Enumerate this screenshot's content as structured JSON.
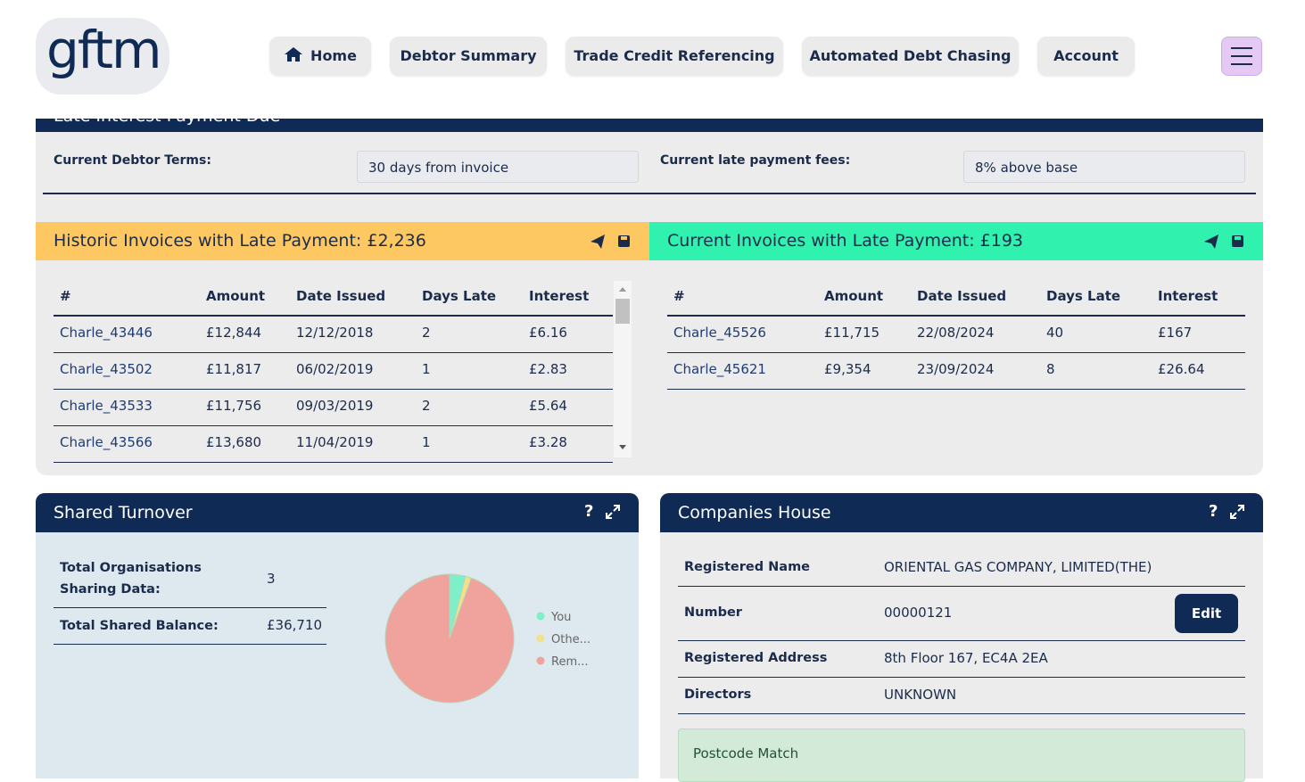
{
  "nav": {
    "logo": "gftm",
    "items": [
      "Home",
      "Debtor Summary",
      "Trade Credit Referencing",
      "Automated Debt Chasing",
      "Account"
    ]
  },
  "late_interest": {
    "title": "Late Interest Payment Due",
    "terms_label": "Current Debtor Terms:",
    "terms_value": "30 days from invoice",
    "fees_label": "Current late payment fees:",
    "fees_value": "8% above base"
  },
  "historic": {
    "title": "Historic Invoices with Late Payment: £2,236",
    "columns": [
      "#",
      "Amount",
      "Date Issued",
      "Days Late",
      "Interest"
    ],
    "rows": [
      [
        "Charle_43446",
        "£12,844",
        "12/12/2018",
        "2",
        "£6.16"
      ],
      [
        "Charle_43502",
        "£11,817",
        "06/02/2019",
        "1",
        "£2.83"
      ],
      [
        "Charle_43533",
        "£11,756",
        "09/03/2019",
        "2",
        "£5.64"
      ],
      [
        "Charle_43566",
        "£13,680",
        "11/04/2019",
        "1",
        "£3.28"
      ]
    ]
  },
  "current": {
    "title": "Current Invoices with Late Payment: £193",
    "columns": [
      "#",
      "Amount",
      "Date Issued",
      "Days Late",
      "Interest"
    ],
    "rows": [
      [
        "Charle_45526",
        "£11,715",
        "22/08/2024",
        "40",
        "£167"
      ],
      [
        "Charle_45621",
        "£9,354",
        "23/09/2024",
        "8",
        "£26.64"
      ]
    ]
  },
  "shared_turnover": {
    "title": "Shared Turnover",
    "help": "?",
    "rows": [
      {
        "label": "Total Organisations Sharing Data:",
        "value": "3"
      },
      {
        "label": "Total Shared Balance:",
        "value": "£36,710"
      }
    ]
  },
  "chart_data": {
    "type": "pie",
    "categories": [
      "You",
      "Othe...",
      "Rem..."
    ],
    "values": [
      4,
      1.5,
      94.5
    ],
    "colors": [
      "#7df0c9",
      "#f3e08c",
      "#f0a39c"
    ]
  },
  "companies_house": {
    "title": "Companies House",
    "help": "?",
    "rows": [
      {
        "label": "Registered Name",
        "value": "ORIENTAL GAS COMPANY, LIMITED(THE)"
      },
      {
        "label": "Number",
        "value": "00000121"
      },
      {
        "label": "Registered Address",
        "value": "8th Floor 167, EC4A 2EA"
      },
      {
        "label": "Directors",
        "value": "UNKNOWN"
      }
    ],
    "edit": "Edit",
    "postcode": "Postcode Match"
  }
}
